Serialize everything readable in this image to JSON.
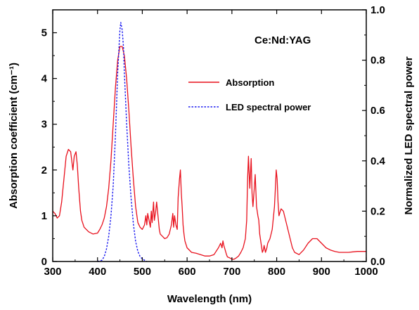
{
  "chart_data": {
    "type": "line",
    "annotation": "Ce:Nd:YAG",
    "xlabel": "Wavelength (nm)",
    "ylabel": "Absorption coefficient (cm⁻¹)",
    "y2label": "Normalized LED spectral power",
    "xlim": [
      300,
      1000
    ],
    "ylim": [
      0,
      5.5
    ],
    "y2lim": [
      0,
      1.0
    ],
    "xticks": [
      "300",
      "400",
      "500",
      "600",
      "700",
      "800",
      "900",
      "1000"
    ],
    "yticks": [
      "0",
      "1",
      "2",
      "3",
      "4",
      "5"
    ],
    "y2ticks": [
      "0.0",
      "0.2",
      "0.4",
      "0.6",
      "0.8",
      "1.0"
    ],
    "legend_position": "upper-right",
    "colors": {
      "absorption": "#e8101c",
      "led": "#1a1af0"
    },
    "series": [
      {
        "name": "Absorption",
        "axis": "left",
        "style": "solid",
        "x": [
          300,
          305,
          310,
          315,
          320,
          325,
          330,
          335,
          340,
          345,
          348,
          352,
          355,
          358,
          362,
          365,
          370,
          380,
          390,
          400,
          405,
          410,
          415,
          420,
          425,
          430,
          435,
          440,
          445,
          450,
          455,
          460,
          465,
          470,
          475,
          480,
          485,
          490,
          495,
          500,
          505,
          508,
          510,
          512,
          515,
          518,
          520,
          522,
          525,
          527,
          530,
          532,
          535,
          538,
          540,
          545,
          550,
          555,
          560,
          565,
          568,
          570,
          572,
          575,
          578,
          580,
          583,
          585,
          587,
          589,
          591,
          593,
          595,
          600,
          610,
          620,
          630,
          640,
          650,
          660,
          670,
          675,
          678,
          680,
          682,
          685,
          688,
          690,
          695,
          700,
          705,
          710,
          715,
          720,
          725,
          730,
          733,
          735,
          737,
          740,
          743,
          745,
          747,
          750,
          752,
          755,
          758,
          760,
          762,
          765,
          768,
          770,
          772,
          775,
          778,
          780,
          785,
          790,
          795,
          797,
          799,
          801,
          803,
          805,
          808,
          810,
          815,
          820,
          825,
          830,
          835,
          840,
          850,
          860,
          870,
          880,
          890,
          900,
          910,
          920,
          930,
          940,
          950,
          960,
          970,
          980,
          990,
          1000
        ],
        "y": [
          1.1,
          1.05,
          0.95,
          1.0,
          1.3,
          1.8,
          2.3,
          2.45,
          2.4,
          2.0,
          2.3,
          2.4,
          2.1,
          1.6,
          1.1,
          0.9,
          0.75,
          0.65,
          0.6,
          0.62,
          0.7,
          0.8,
          0.95,
          1.2,
          1.6,
          2.2,
          3.0,
          3.8,
          4.4,
          4.7,
          4.7,
          4.5,
          4.0,
          3.3,
          2.5,
          1.8,
          1.2,
          0.85,
          0.75,
          0.7,
          0.8,
          1.0,
          0.8,
          1.05,
          0.9,
          0.75,
          1.1,
          0.85,
          1.3,
          0.9,
          1.1,
          1.3,
          1.0,
          0.7,
          0.6,
          0.55,
          0.5,
          0.52,
          0.6,
          0.8,
          1.05,
          0.75,
          1.0,
          0.8,
          0.7,
          1.4,
          1.8,
          2.0,
          1.5,
          1.2,
          0.8,
          0.6,
          0.45,
          0.3,
          0.2,
          0.18,
          0.15,
          0.12,
          0.12,
          0.15,
          0.3,
          0.4,
          0.3,
          0.45,
          0.35,
          0.25,
          0.15,
          0.1,
          0.08,
          0.05,
          0.05,
          0.08,
          0.12,
          0.2,
          0.3,
          0.5,
          0.9,
          1.8,
          2.3,
          1.6,
          2.25,
          1.5,
          1.2,
          1.6,
          1.9,
          1.2,
          1.0,
          0.9,
          0.6,
          0.4,
          0.2,
          0.25,
          0.35,
          0.2,
          0.3,
          0.4,
          0.5,
          0.7,
          1.2,
          1.6,
          2.0,
          1.8,
          1.3,
          1.0,
          1.1,
          1.15,
          1.1,
          0.9,
          0.7,
          0.5,
          0.3,
          0.2,
          0.15,
          0.25,
          0.4,
          0.5,
          0.5,
          0.4,
          0.3,
          0.25,
          0.22,
          0.2,
          0.2,
          0.2,
          0.21,
          0.22,
          0.22,
          0.22
        ]
      },
      {
        "name": "LED spectral power",
        "axis": "right",
        "style": "dashed",
        "x": [
          400,
          410,
          415,
          420,
          425,
          430,
          435,
          440,
          445,
          450,
          452,
          455,
          458,
          460,
          465,
          470,
          475,
          480,
          485,
          490,
          495,
          500,
          510
        ],
        "y": [
          0,
          0.005,
          0.02,
          0.05,
          0.1,
          0.18,
          0.3,
          0.5,
          0.75,
          0.92,
          0.95,
          0.92,
          0.85,
          0.75,
          0.55,
          0.38,
          0.25,
          0.15,
          0.08,
          0.04,
          0.02,
          0.01,
          0.0
        ]
      }
    ]
  }
}
